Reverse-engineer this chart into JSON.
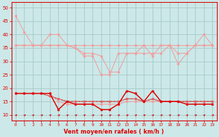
{
  "x": [
    0,
    1,
    2,
    3,
    4,
    5,
    6,
    7,
    8,
    9,
    10,
    11,
    12,
    13,
    14,
    15,
    16,
    17,
    18,
    19,
    20,
    21,
    22,
    23
  ],
  "series_rafales": [
    47,
    41,
    36,
    36,
    40,
    40,
    36,
    35,
    32,
    32,
    25,
    25,
    33,
    33,
    33,
    36,
    32,
    36,
    36,
    29,
    33,
    36,
    40,
    36
  ],
  "series_upper2": [
    36,
    36,
    36,
    36,
    36,
    36,
    36,
    36,
    36,
    36,
    36,
    36,
    36,
    36,
    36,
    36,
    36,
    36,
    36,
    36,
    36,
    36,
    36,
    36
  ],
  "series_upper3": [
    36,
    36,
    36,
    36,
    36,
    36,
    36,
    35,
    33,
    33,
    32,
    26,
    26,
    33,
    33,
    33,
    33,
    33,
    36,
    33,
    33,
    36,
    36,
    36
  ],
  "series_wind_dark": [
    18,
    18,
    18,
    18,
    18,
    12,
    15,
    14,
    14,
    14,
    12,
    12,
    14,
    19,
    18,
    15,
    19,
    15,
    15,
    15,
    14,
    14,
    14,
    14
  ],
  "series_wind_mid": [
    18,
    18,
    18,
    18,
    17,
    16,
    15,
    15,
    15,
    15,
    15,
    15,
    15,
    16,
    16,
    15,
    16,
    15,
    15,
    15,
    15,
    15,
    15,
    15
  ],
  "series_wind_lt": [
    18,
    18,
    18,
    18,
    18,
    15,
    14,
    14,
    14,
    14,
    14,
    14,
    14,
    15,
    15,
    15,
    15,
    15,
    15,
    15,
    15,
    15,
    15,
    15
  ],
  "bg_color": "#cce8e8",
  "grid_color": "#aacccc",
  "color_light": "#f0a0a0",
  "color_mid": "#e86060",
  "color_dark": "#dd0000",
  "color_black": "#222222",
  "xlabel": "Vent moyen/en rafales ( km/h )",
  "ylim_bottom": 8,
  "ylim_top": 52,
  "yticks": [
    10,
    15,
    20,
    25,
    30,
    35,
    40,
    45,
    50
  ],
  "xticks": [
    0,
    1,
    2,
    3,
    4,
    5,
    6,
    7,
    8,
    9,
    10,
    11,
    12,
    13,
    14,
    15,
    16,
    17,
    18,
    19,
    20,
    21,
    22,
    23
  ]
}
